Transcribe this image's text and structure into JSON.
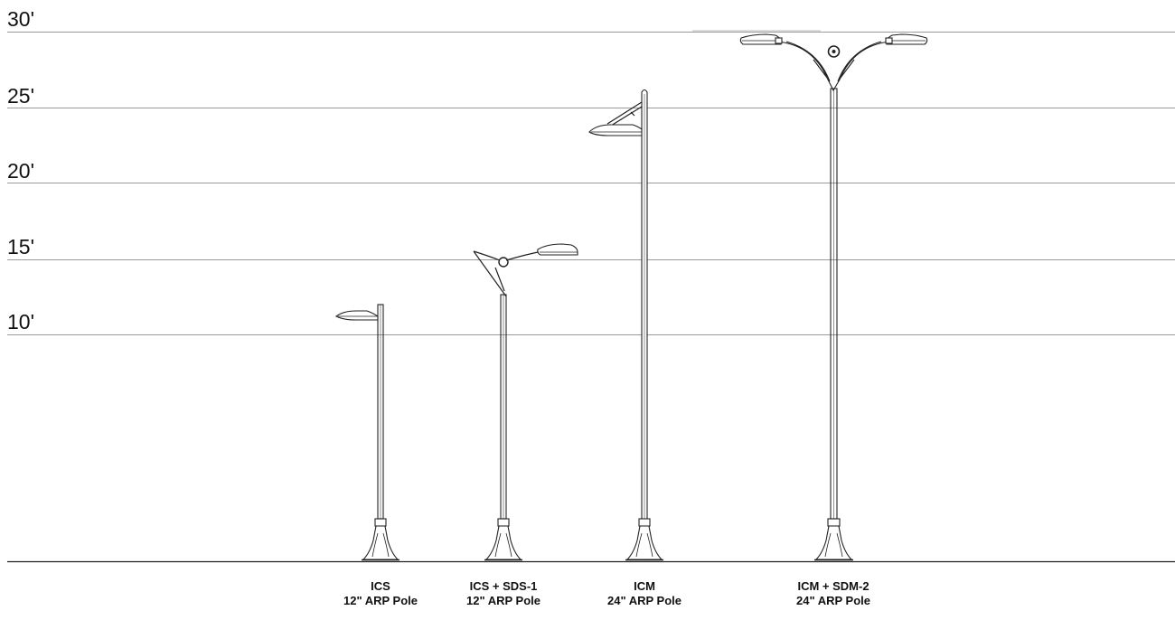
{
  "height_scale": {
    "labels": [
      "30'",
      "25'",
      "20'",
      "15'",
      "10'"
    ]
  },
  "fixtures": [
    {
      "name": "ICS",
      "pole": "12\" ARP Pole"
    },
    {
      "name": "ICS + SDS-1",
      "pole": "12\" ARP Pole"
    },
    {
      "name": "ICM",
      "pole": "24\" ARP Pole"
    },
    {
      "name": "ICM + SDM-2",
      "pole": "24\" ARP Pole"
    }
  ],
  "colors": {
    "line": "#999999",
    "ink": "#222222",
    "text": "#111111"
  }
}
